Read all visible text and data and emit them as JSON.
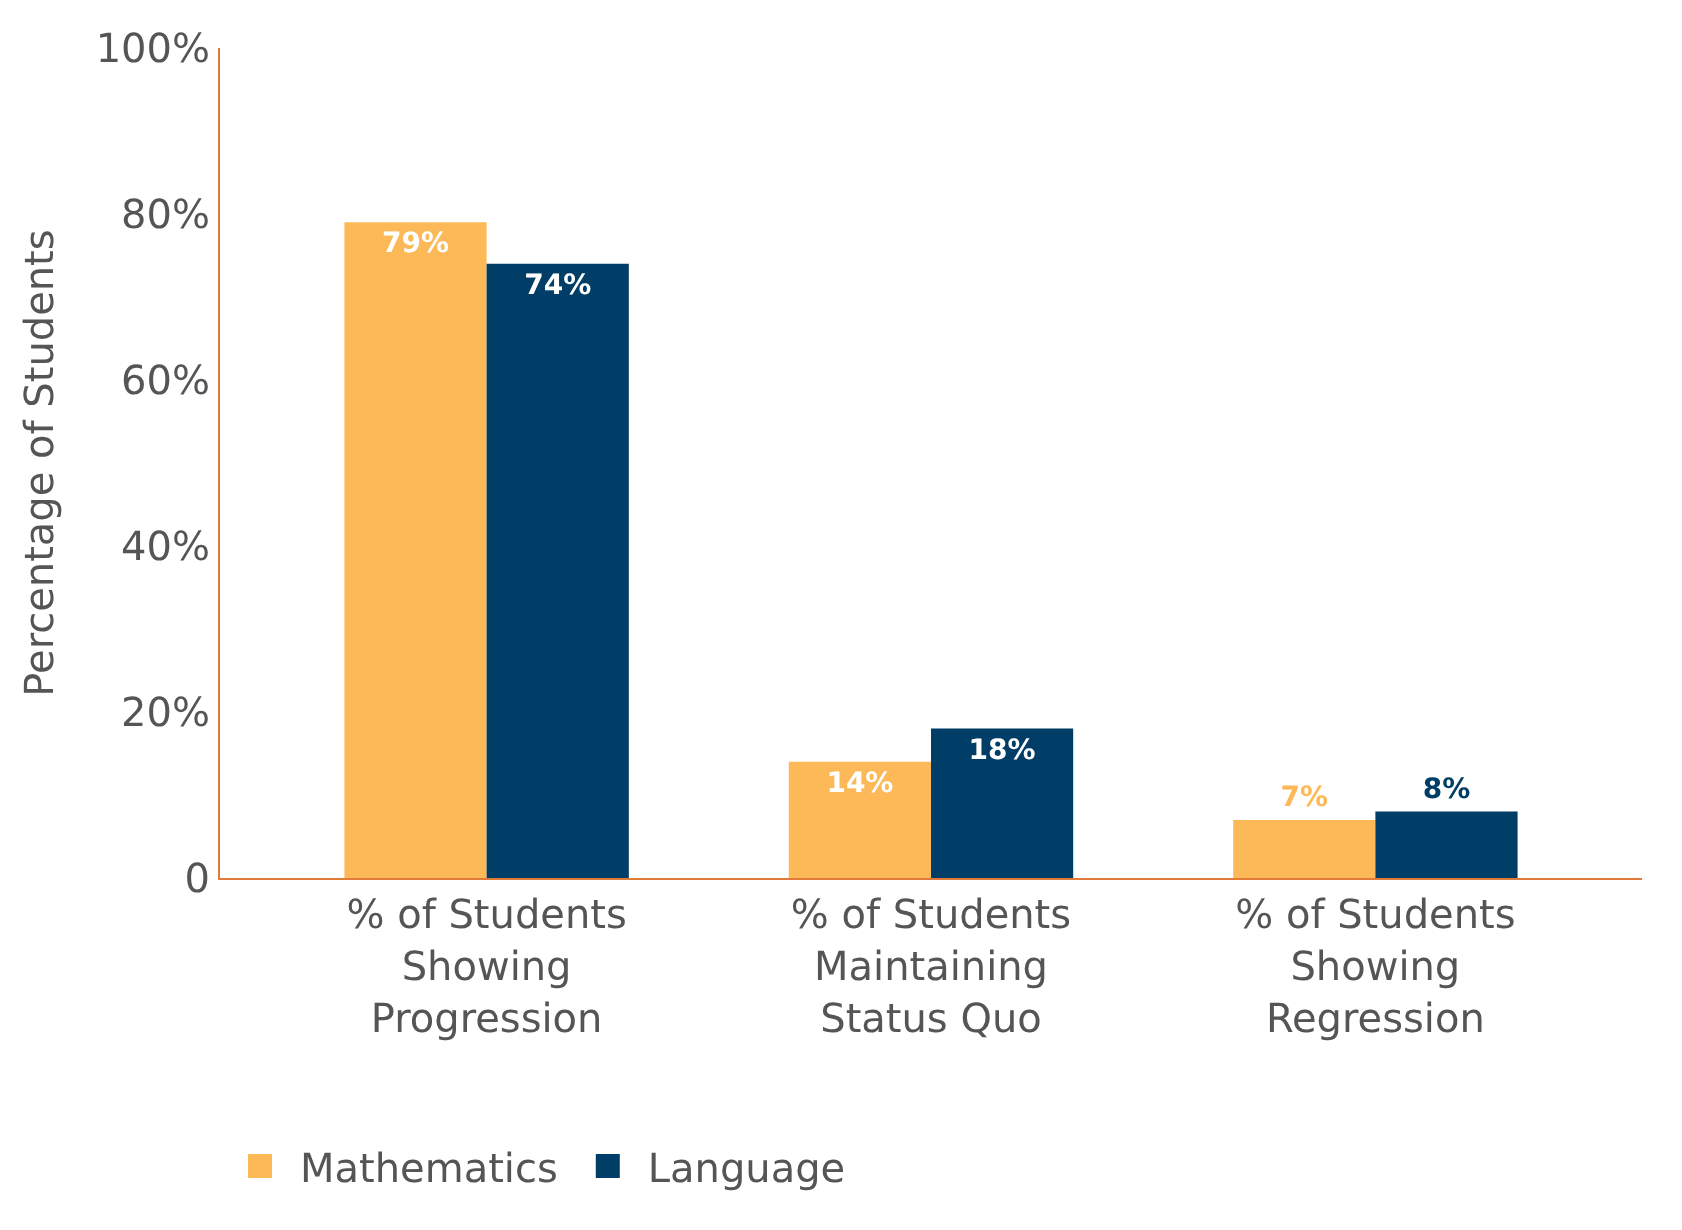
{
  "chart_data": {
    "type": "bar",
    "ylabel": "Percentage of Students",
    "categories": [
      "% of Students Showing Progression",
      "% of Students Maintaining Status Quo",
      "% of Students Showing Regression"
    ],
    "series": [
      {
        "name": "Mathematics",
        "color": "#fdb957",
        "values": [
          79,
          14,
          7
        ],
        "value_labels": [
          "79%",
          "14%",
          "7%"
        ]
      },
      {
        "name": "Language",
        "color": "#003d67",
        "values": [
          74,
          18,
          8
        ],
        "value_labels": [
          "74%",
          "18%",
          "8%"
        ]
      }
    ],
    "ylim": [
      0,
      100
    ],
    "yticks": [
      {
        "value": 0,
        "label": "0"
      },
      {
        "value": 20,
        "label": "20%"
      },
      {
        "value": 40,
        "label": "40%"
      },
      {
        "value": 60,
        "label": "60%"
      },
      {
        "value": 80,
        "label": "80%"
      },
      {
        "value": 100,
        "label": "100%"
      }
    ],
    "legend": "bottom"
  }
}
